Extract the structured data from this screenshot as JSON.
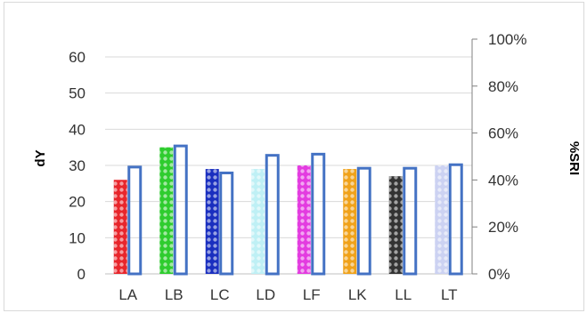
{
  "chart_data": {
    "type": "bar",
    "categories": [
      "LA",
      "LB",
      "LC",
      "LD",
      "LF",
      "LK",
      "LL",
      "LT"
    ],
    "ylabel": "dY",
    "y2label": "%SRI",
    "ylim": [
      0,
      60
    ],
    "y2lim": [
      0,
      1.0
    ],
    "yticks": [
      "0",
      "10",
      "20",
      "30",
      "40",
      "50",
      "60"
    ],
    "y2ticks": [
      "0%",
      "20%",
      "40%",
      "60%",
      "80%",
      "100%"
    ],
    "grid": true,
    "legend": "none",
    "series": [
      {
        "axis": "primary",
        "values": [
          26,
          35,
          29,
          29,
          30,
          29,
          27,
          30
        ],
        "colors": [
          "#e8262c",
          "#2ecc2e",
          "#1a2fbf",
          "#bff0f5",
          "#e33ce0",
          "#f0a21a",
          "#333333",
          "#ccd2f2"
        ]
      },
      {
        "axis": "secondary",
        "values": [
          0.455,
          0.545,
          0.43,
          0.505,
          0.51,
          0.45,
          0.45,
          0.465
        ],
        "colors": [
          "#4472c4"
        ]
      }
    ]
  }
}
